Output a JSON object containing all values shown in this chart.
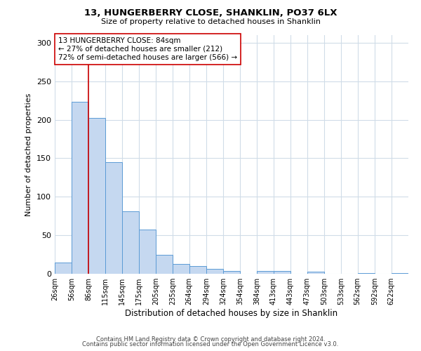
{
  "title": "13, HUNGERBERRY CLOSE, SHANKLIN, PO37 6LX",
  "subtitle": "Size of property relative to detached houses in Shanklin",
  "xlabel": "Distribution of detached houses by size in Shanklin",
  "ylabel": "Number of detached properties",
  "bar_color": "#c5d8f0",
  "bar_edge_color": "#5b9bd5",
  "background_color": "#ffffff",
  "grid_color": "#d0dce8",
  "bin_labels": [
    "26sqm",
    "56sqm",
    "86sqm",
    "115sqm",
    "145sqm",
    "175sqm",
    "205sqm",
    "235sqm",
    "264sqm",
    "294sqm",
    "324sqm",
    "354sqm",
    "384sqm",
    "413sqm",
    "443sqm",
    "473sqm",
    "503sqm",
    "533sqm",
    "562sqm",
    "592sqm",
    "622sqm"
  ],
  "bar_heights": [
    15,
    223,
    202,
    145,
    81,
    57,
    25,
    13,
    10,
    6,
    4,
    0,
    4,
    4,
    0,
    3,
    0,
    0,
    1,
    0,
    1
  ],
  "bin_edges": [
    26,
    56,
    86,
    115,
    145,
    175,
    205,
    235,
    264,
    294,
    324,
    354,
    384,
    413,
    443,
    473,
    503,
    533,
    562,
    592,
    622,
    652
  ],
  "property_line_x": 86,
  "property_line_color": "#cc0000",
  "annotation_text": "13 HUNGERBERRY CLOSE: 84sqm\n← 27% of detached houses are smaller (212)\n72% of semi-detached houses are larger (566) →",
  "annotation_box_color": "#ffffff",
  "annotation_box_edge_color": "#cc0000",
  "ylim": [
    0,
    310
  ],
  "yticks": [
    0,
    50,
    100,
    150,
    200,
    250,
    300
  ],
  "footer_line1": "Contains HM Land Registry data © Crown copyright and database right 2024.",
  "footer_line2": "Contains public sector information licensed under the Open Government Licence v3.0."
}
